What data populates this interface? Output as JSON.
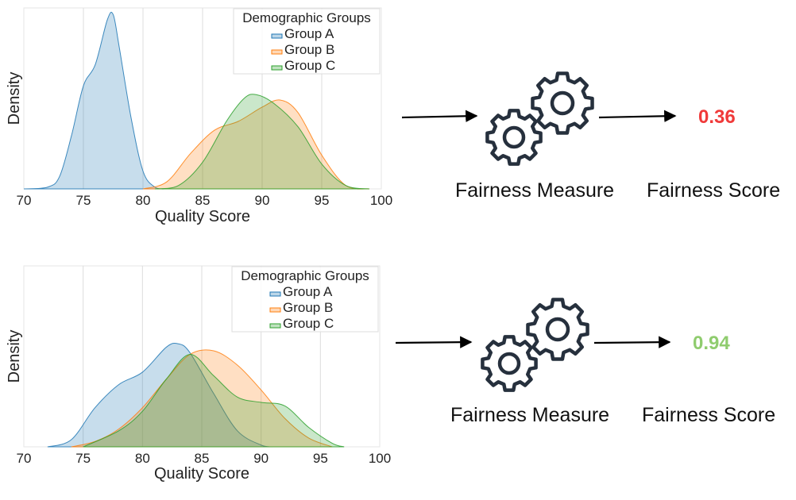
{
  "panels": [
    {
      "measure_label": "Fairness Measure",
      "score_label": "Fairness Score",
      "score_value": "0.36",
      "score_color": "#f03a3a"
    },
    {
      "measure_label": "Fairness Measure",
      "score_label": "Fairness Score",
      "score_value": "0.94",
      "score_color": "#8fcc6e"
    }
  ],
  "icons": {
    "measure": "gears-icon",
    "arrow": "arrow-right-icon"
  },
  "chart_data": [
    {
      "type": "area",
      "xlabel": "Quality Score",
      "ylabel": "Density",
      "xlim": [
        70,
        100
      ],
      "xticks": [
        70,
        75,
        80,
        85,
        90,
        95,
        100
      ],
      "grid": "vertical",
      "legend": {
        "title": "Demographic Groups",
        "position": "top-right"
      },
      "series": [
        {
          "name": "Group A",
          "color": "#1f77b4",
          "fill": "#c5d9ea",
          "x": [
            70,
            72,
            73,
            74,
            75,
            76,
            77,
            77.5,
            78,
            79,
            80,
            81,
            82
          ],
          "y": [
            0.0,
            0.01,
            0.07,
            0.3,
            0.58,
            0.7,
            0.95,
            0.98,
            0.8,
            0.4,
            0.1,
            0.01,
            0.0
          ]
        },
        {
          "name": "Group B",
          "color": "#ff7f0e",
          "fill": "#fad3b3",
          "x": [
            80,
            82,
            84,
            86,
            88,
            90,
            91.5,
            93,
            95,
            97,
            99
          ],
          "y": [
            0.0,
            0.04,
            0.2,
            0.33,
            0.38,
            0.46,
            0.5,
            0.43,
            0.19,
            0.02,
            0.0
          ]
        },
        {
          "name": "Group C",
          "color": "#2ca02c",
          "fill": "#c6e2bd",
          "x": [
            81,
            83,
            85,
            87,
            88.5,
            89.5,
            91,
            93,
            95,
            97,
            99
          ],
          "y": [
            0.0,
            0.02,
            0.15,
            0.38,
            0.51,
            0.53,
            0.48,
            0.35,
            0.14,
            0.02,
            0.0
          ]
        }
      ]
    },
    {
      "type": "area",
      "xlabel": "Quality Score",
      "ylabel": "Density",
      "xlim": [
        70,
        100
      ],
      "xticks": [
        70,
        75,
        80,
        85,
        90,
        95,
        100
      ],
      "grid": "vertical",
      "legend": {
        "title": "Demographic Groups",
        "position": "top-right"
      },
      "series": [
        {
          "name": "Group A",
          "color": "#1f77b4",
          "fill": "#c5d9ea",
          "x": [
            72,
            74,
            76,
            78,
            80,
            82,
            83,
            84,
            86,
            88,
            90,
            91
          ],
          "y": [
            0.0,
            0.04,
            0.22,
            0.35,
            0.42,
            0.56,
            0.58,
            0.53,
            0.3,
            0.09,
            0.01,
            0.0
          ]
        },
        {
          "name": "Group B",
          "color": "#ff7f0e",
          "fill": "#fad3b3",
          "x": [
            74,
            76,
            78,
            80,
            82,
            84,
            86,
            88,
            90,
            92,
            94,
            96
          ],
          "y": [
            0.0,
            0.03,
            0.1,
            0.22,
            0.38,
            0.52,
            0.54,
            0.46,
            0.32,
            0.16,
            0.05,
            0.0
          ]
        },
        {
          "name": "Group C",
          "color": "#2ca02c",
          "fill": "#c6e2bd",
          "x": [
            75,
            78,
            80,
            82,
            84,
            86,
            88,
            90,
            92,
            94,
            96,
            97
          ],
          "y": [
            0.0,
            0.09,
            0.2,
            0.38,
            0.52,
            0.4,
            0.28,
            0.25,
            0.23,
            0.11,
            0.02,
            0.0
          ]
        }
      ]
    }
  ]
}
